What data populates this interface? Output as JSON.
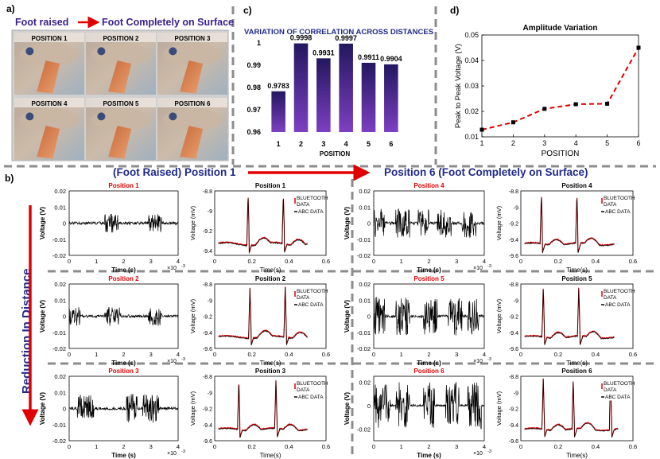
{
  "panel_a": {
    "label": "a)",
    "header_left": "Foot raised",
    "header_right": "Foot Completely on Surface",
    "photos": [
      "POSITION 1",
      "POSITION 2",
      "POSITION 3",
      "POSITION 4",
      "POSITION 5",
      "POSITION 6"
    ]
  },
  "panel_c": {
    "label": "c)",
    "chart_data": {
      "type": "bar",
      "title": "VARIATION OF CORRELATION ACROSS DISTANCES",
      "categories": [
        "1",
        "2",
        "3",
        "4",
        "5",
        "6"
      ],
      "values": [
        0.9783,
        0.9998,
        0.9931,
        0.9997,
        0.9911,
        0.9904
      ],
      "value_labels": [
        "0.9783",
        "0.9998",
        "0.9931",
        "0.9997",
        "0.9911",
        "0.9904"
      ],
      "xlabel": "POSITION",
      "ylabel": "",
      "ylim": [
        0.96,
        1.0
      ],
      "yticks": [
        "0.96",
        "0.97",
        "0.98",
        "0.99",
        "1"
      ],
      "bar_color_top": "#2a1a6e",
      "bar_color_bottom": "#7b3fc0"
    }
  },
  "panel_d": {
    "label": "d)",
    "chart_data": {
      "type": "line",
      "title": "Amplitude Variation",
      "x": [
        1,
        2,
        3,
        4,
        5,
        6
      ],
      "y": [
        0.0128,
        0.0157,
        0.021,
        0.0228,
        0.023,
        0.045
      ],
      "xlabel": "POSITION",
      "ylabel": "Peak to Peak Voltage (V)",
      "xlim": [
        1,
        6
      ],
      "ylim": [
        0.01,
        0.05
      ],
      "xticks": [
        "1",
        "2",
        "3",
        "4",
        "5",
        "6"
      ],
      "yticks": [
        "0.01",
        "0.02",
        "0.03",
        "0.04",
        "0.05"
      ],
      "line_color": "#e00000",
      "marker_color": "#000000"
    }
  },
  "panel_b": {
    "label": "b)",
    "heading_left": "(Foot Raised) Position 1",
    "heading_right": "Position 6 (Foot Completely on Surface)",
    "side_label": "Reduction In Distance",
    "raw": {
      "ylabel": "Voltage (V)",
      "xlabel": "Time (s)",
      "exponent": "×10",
      "exponent_power": "-3",
      "xticks": [
        "0",
        "1",
        "2",
        "3",
        "4"
      ],
      "yticks_small": [
        "0.02",
        "0.01",
        "0",
        "-0.01",
        "-0.02"
      ],
      "yticks_large": [
        "0.02",
        "0",
        "-0.02"
      ]
    },
    "ecg": {
      "ylabel": "Voltage (mV)",
      "xlabel": "Time(s)",
      "xticks": [
        "0",
        "0.2",
        "0.4",
        "0.6"
      ],
      "yticks_a": [
        "-8.8",
        "-9",
        "-9.2",
        "-9.4"
      ],
      "yticks_b": [
        "-8.8",
        "-9",
        "-9.2",
        "-9.4",
        "-9.6"
      ],
      "legend_bt_1": "BLUETOOTH",
      "legend_bt_2": "DATA",
      "legend_abc": "ABC DATA"
    },
    "plots": [
      {
        "raw_title": "Position 1",
        "ecg_title": "Position 1"
      },
      {
        "raw_title": "Position 2",
        "ecg_title": "Position 2"
      },
      {
        "raw_title": "Position 3",
        "ecg_title": "Position 3"
      },
      {
        "raw_title": "Position 4",
        "ecg_title": "Position 4"
      },
      {
        "raw_title": "Position 5",
        "ecg_title": "Position 5"
      },
      {
        "raw_title": "Position 6",
        "ecg_title": "Position 6"
      }
    ],
    "chart_data": [
      {
        "type": "line",
        "title": "Position 1",
        "xlabel": "Time (s)",
        "ylabel": "Voltage (V)",
        "xlim": [
          0,
          0.004
        ],
        "ylim": [
          -0.02,
          0.02
        ],
        "burst_amplitude": 0.006,
        "bursts": [
          [
            0.0013,
            0.0018
          ],
          [
            0.0029,
            0.0034
          ]
        ]
      },
      {
        "type": "line",
        "title": "Position 1",
        "xlabel": "Time(s)",
        "ylabel": "Voltage (mV)",
        "xlim": [
          0,
          0.6
        ],
        "ylim": [
          -9.45,
          -8.8
        ],
        "peaks": [
          0.18,
          0.37
        ],
        "series": [
          "BLUETOOTH DATA",
          "ABC DATA"
        ]
      },
      {
        "type": "line",
        "title": "Position 2",
        "xlabel": "Time (s)",
        "ylabel": "Voltage (V)",
        "xlim": [
          0,
          0.004
        ],
        "ylim": [
          -0.02,
          0.02
        ],
        "burst_amplitude": 0.006,
        "bursts": [
          [
            0.0,
            0.0004
          ],
          [
            0.0013,
            0.0019
          ],
          [
            0.0029,
            0.0034
          ]
        ]
      },
      {
        "type": "line",
        "title": "Position 2",
        "xlabel": "Time(s)",
        "ylabel": "Voltage (mV)",
        "xlim": [
          0,
          0.6
        ],
        "ylim": [
          -9.6,
          -8.8
        ],
        "peaks": [
          0.19,
          0.38
        ],
        "series": [
          "BLUETOOTH DATA",
          "ABC DATA"
        ]
      },
      {
        "type": "line",
        "title": "Position 3",
        "xlabel": "Time (s)",
        "ylabel": "Voltage (V)",
        "xlim": [
          0,
          0.004
        ],
        "ylim": [
          -0.02,
          0.02
        ],
        "burst_amplitude": 0.009,
        "bursts": [
          [
            0.0003,
            0.0009
          ],
          [
            0.0021,
            0.0025
          ],
          [
            0.0027,
            0.0033
          ]
        ]
      },
      {
        "type": "line",
        "title": "Position 3",
        "xlabel": "Time(s)",
        "ylabel": "Voltage (mV)",
        "xlim": [
          0,
          0.6
        ],
        "ylim": [
          -9.6,
          -8.8
        ],
        "peaks": [
          0.13,
          0.33
        ],
        "series": [
          "BLUETOOTH DATA",
          "ABC DATA"
        ]
      },
      {
        "type": "line",
        "title": "Position 4",
        "xlabel": "Time (s)",
        "ylabel": "Voltage (V)",
        "xlim": [
          0,
          0.004
        ],
        "ylim": [
          -0.02,
          0.02
        ],
        "burst_amplitude": 0.009,
        "bursts": [
          [
            0.0,
            0.0004
          ],
          [
            0.0008,
            0.0013
          ],
          [
            0.0016,
            0.002
          ],
          [
            0.0023,
            0.0028
          ],
          [
            0.0032,
            0.0037
          ]
        ]
      },
      {
        "type": "line",
        "title": "Position 4",
        "xlabel": "Time(s)",
        "ylabel": "Voltage (mV)",
        "xlim": [
          0,
          0.6
        ],
        "ylim": [
          -9.6,
          -8.8
        ],
        "peaks": [
          0.11,
          0.3
        ],
        "series": [
          "BLUETOOTH DATA",
          "ABC DATA"
        ]
      },
      {
        "type": "line",
        "title": "Position 5",
        "xlabel": "Time (s)",
        "ylabel": "Voltage (V)",
        "xlim": [
          0,
          0.004
        ],
        "ylim": [
          -0.02,
          0.02
        ],
        "burst_amplitude": 0.012,
        "bursts": [
          [
            0.0,
            0.0004
          ],
          [
            0.0008,
            0.0013
          ],
          [
            0.0018,
            0.0023
          ],
          [
            0.0027,
            0.0032
          ],
          [
            0.0034,
            0.0038
          ]
        ]
      },
      {
        "type": "line",
        "title": "Position 5",
        "xlabel": "Time(s)",
        "ylabel": "Voltage (mV)",
        "xlim": [
          0,
          0.6
        ],
        "ylim": [
          -9.6,
          -8.8
        ],
        "peaks": [
          0.12,
          0.31
        ],
        "series": [
          "BLUETOOTH DATA",
          "ABC DATA"
        ]
      },
      {
        "type": "line",
        "title": "Position 6",
        "xlabel": "Time (s)",
        "ylabel": "Voltage (V)",
        "xlim": [
          0,
          0.004
        ],
        "ylim": [
          -0.03,
          0.025
        ],
        "burst_amplitude": 0.02,
        "bursts": [
          [
            0.0,
            0.0006
          ],
          [
            0.0008,
            0.0013
          ],
          [
            0.0018,
            0.0022
          ],
          [
            0.0026,
            0.0031
          ],
          [
            0.0034,
            0.0039
          ]
        ]
      },
      {
        "type": "line",
        "title": "Position 6",
        "xlabel": "Time(s)",
        "ylabel": "Voltage (mV)",
        "xlim": [
          0,
          0.6
        ],
        "ylim": [
          -9.6,
          -8.8
        ],
        "peaks": [
          0.12,
          0.28,
          0.48
        ],
        "series": [
          "BLUETOOTH DATA",
          "ABC DATA"
        ]
      }
    ]
  },
  "colors": {
    "title_blue": "#1f2a8a",
    "red": "#e00000",
    "purple": "#3a1e8a",
    "dash_gray": "#8c8c8c"
  }
}
